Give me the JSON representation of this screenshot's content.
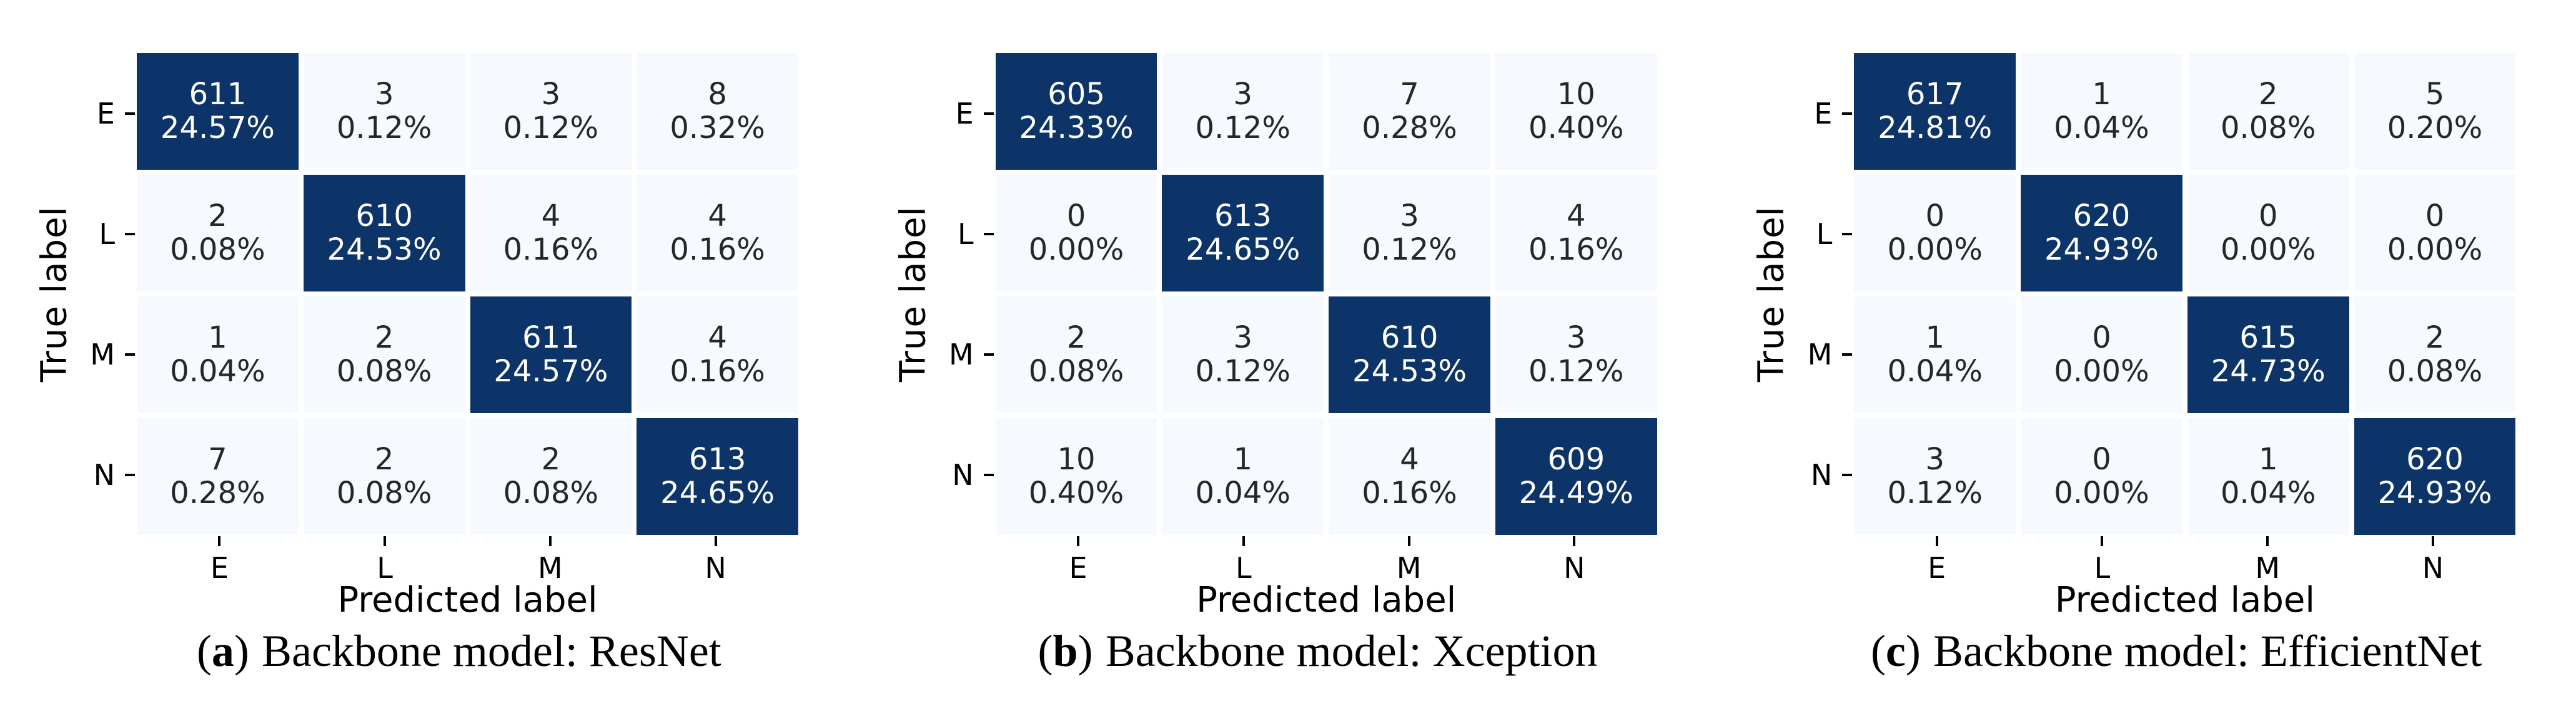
{
  "figure": {
    "y_axis_label": "True label",
    "x_axis_label": "Predicted label",
    "classes": [
      "E",
      "L",
      "M",
      "N"
    ],
    "colors": {
      "diagonal_fill": "#0c3468",
      "off_diagonal_fill": "#f6f9fd",
      "text_on_diagonal": "#ffffff",
      "text_on_off_diagonal": "#262626",
      "axis_text": "#000000",
      "background": "#ffffff"
    },
    "panels": [
      {
        "caption_letter": "a",
        "caption_title": "Backbone model: ResNet",
        "cells": [
          [
            {
              "count": "611",
              "pct": "24.57%"
            },
            {
              "count": "3",
              "pct": "0.12%"
            },
            {
              "count": "3",
              "pct": "0.12%"
            },
            {
              "count": "8",
              "pct": "0.32%"
            }
          ],
          [
            {
              "count": "2",
              "pct": "0.08%"
            },
            {
              "count": "610",
              "pct": "24.53%"
            },
            {
              "count": "4",
              "pct": "0.16%"
            },
            {
              "count": "4",
              "pct": "0.16%"
            }
          ],
          [
            {
              "count": "1",
              "pct": "0.04%"
            },
            {
              "count": "2",
              "pct": "0.08%"
            },
            {
              "count": "611",
              "pct": "24.57%"
            },
            {
              "count": "4",
              "pct": "0.16%"
            }
          ],
          [
            {
              "count": "7",
              "pct": "0.28%"
            },
            {
              "count": "2",
              "pct": "0.08%"
            },
            {
              "count": "2",
              "pct": "0.08%"
            },
            {
              "count": "613",
              "pct": "24.65%"
            }
          ]
        ]
      },
      {
        "caption_letter": "b",
        "caption_title": "Backbone model: Xception",
        "cells": [
          [
            {
              "count": "605",
              "pct": "24.33%"
            },
            {
              "count": "3",
              "pct": "0.12%"
            },
            {
              "count": "7",
              "pct": "0.28%"
            },
            {
              "count": "10",
              "pct": "0.40%"
            }
          ],
          [
            {
              "count": "0",
              "pct": "0.00%"
            },
            {
              "count": "613",
              "pct": "24.65%"
            },
            {
              "count": "3",
              "pct": "0.12%"
            },
            {
              "count": "4",
              "pct": "0.16%"
            }
          ],
          [
            {
              "count": "2",
              "pct": "0.08%"
            },
            {
              "count": "3",
              "pct": "0.12%"
            },
            {
              "count": "610",
              "pct": "24.53%"
            },
            {
              "count": "3",
              "pct": "0.12%"
            }
          ],
          [
            {
              "count": "10",
              "pct": "0.40%"
            },
            {
              "count": "1",
              "pct": "0.04%"
            },
            {
              "count": "4",
              "pct": "0.16%"
            },
            {
              "count": "609",
              "pct": "24.49%"
            }
          ]
        ]
      },
      {
        "caption_letter": "c",
        "caption_title": "Backbone model: EfficientNet",
        "cells": [
          [
            {
              "count": "617",
              "pct": "24.81%"
            },
            {
              "count": "1",
              "pct": "0.04%"
            },
            {
              "count": "2",
              "pct": "0.08%"
            },
            {
              "count": "5",
              "pct": "0.20%"
            }
          ],
          [
            {
              "count": "0",
              "pct": "0.00%"
            },
            {
              "count": "620",
              "pct": "24.93%"
            },
            {
              "count": "0",
              "pct": "0.00%"
            },
            {
              "count": "0",
              "pct": "0.00%"
            }
          ],
          [
            {
              "count": "1",
              "pct": "0.04%"
            },
            {
              "count": "0",
              "pct": "0.00%"
            },
            {
              "count": "615",
              "pct": "24.73%"
            },
            {
              "count": "2",
              "pct": "0.08%"
            }
          ],
          [
            {
              "count": "3",
              "pct": "0.12%"
            },
            {
              "count": "0",
              "pct": "0.00%"
            },
            {
              "count": "1",
              "pct": "0.04%"
            },
            {
              "count": "620",
              "pct": "24.93%"
            }
          ]
        ]
      }
    ]
  },
  "chart_data": [
    {
      "type": "heatmap",
      "title": "(a) Backbone model: ResNet",
      "xlabel": "Predicted label",
      "ylabel": "True label",
      "x": [
        "E",
        "L",
        "M",
        "N"
      ],
      "y": [
        "E",
        "L",
        "M",
        "N"
      ],
      "counts": [
        [
          611,
          3,
          3,
          8
        ],
        [
          2,
          610,
          4,
          4
        ],
        [
          1,
          2,
          611,
          4
        ],
        [
          7,
          2,
          2,
          613
        ]
      ],
      "percents": [
        [
          24.57,
          0.12,
          0.12,
          0.32
        ],
        [
          0.08,
          24.53,
          0.16,
          0.16
        ],
        [
          0.04,
          0.08,
          24.57,
          0.16
        ],
        [
          0.28,
          0.08,
          0.08,
          24.65
        ]
      ],
      "colormap": "Blues",
      "legend": "none",
      "grid": "off"
    },
    {
      "type": "heatmap",
      "title": "(b) Backbone model: Xception",
      "xlabel": "Predicted label",
      "ylabel": "True label",
      "x": [
        "E",
        "L",
        "M",
        "N"
      ],
      "y": [
        "E",
        "L",
        "M",
        "N"
      ],
      "counts": [
        [
          605,
          3,
          7,
          10
        ],
        [
          0,
          613,
          3,
          4
        ],
        [
          2,
          3,
          610,
          3
        ],
        [
          10,
          1,
          4,
          609
        ]
      ],
      "percents": [
        [
          24.33,
          0.12,
          0.28,
          0.4
        ],
        [
          0.0,
          24.65,
          0.12,
          0.16
        ],
        [
          0.08,
          0.12,
          24.53,
          0.12
        ],
        [
          0.4,
          0.04,
          0.16,
          24.49
        ]
      ],
      "colormap": "Blues",
      "legend": "none",
      "grid": "off"
    },
    {
      "type": "heatmap",
      "title": "(c) Backbone model: EfficientNet",
      "xlabel": "Predicted label",
      "ylabel": "True label",
      "x": [
        "E",
        "L",
        "M",
        "N"
      ],
      "y": [
        "E",
        "L",
        "M",
        "N"
      ],
      "counts": [
        [
          617,
          1,
          2,
          5
        ],
        [
          0,
          620,
          0,
          0
        ],
        [
          1,
          0,
          615,
          2
        ],
        [
          3,
          0,
          1,
          620
        ]
      ],
      "percents": [
        [
          24.81,
          0.04,
          0.08,
          0.2
        ],
        [
          0.0,
          24.93,
          0.0,
          0.0
        ],
        [
          0.04,
          0.0,
          24.73,
          0.08
        ],
        [
          0.12,
          0.0,
          0.04,
          24.93
        ]
      ],
      "colormap": "Blues",
      "legend": "none",
      "grid": "off"
    }
  ]
}
